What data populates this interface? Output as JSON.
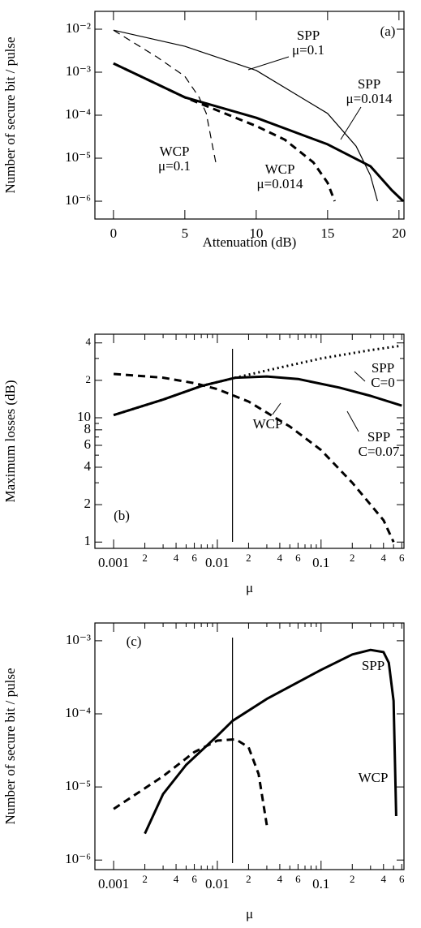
{
  "chart_data": [
    {
      "type": "line",
      "xlabel": "Attenuation (dB)",
      "ylabel": "Number of secure bit / pulse",
      "xscale": "linear",
      "yscale": "log",
      "xlim": [
        -1.3,
        20.35
      ],
      "ylim": [
        3.85e-07,
        0.026
      ],
      "xticks": [
        0,
        5,
        10,
        15,
        20
      ],
      "yticks": [
        {
          "value": 0.01,
          "label": "10⁻²"
        },
        {
          "value": 0.001,
          "label": "10⁻³"
        },
        {
          "value": 0.0001,
          "label": "10⁻⁴"
        },
        {
          "value": 1e-05,
          "label": "10⁻⁵"
        },
        {
          "value": 1e-06,
          "label": "10⁻⁶"
        }
      ],
      "annotations": [
        [
          "(a)"
        ],
        [
          "SPP",
          "μ=0.1"
        ],
        [
          "SPP",
          "μ=0.014"
        ],
        [
          "WCP",
          "μ=0.1"
        ],
        [
          "WCP",
          "μ=0.014"
        ]
      ],
      "series": [
        {
          "color": "#000",
          "width": 1.2,
          "style": "solid",
          "x": [
            0,
            5,
            10,
            15,
            17,
            18,
            18.5
          ],
          "values": [
            0.0095,
            0.004,
            0.0011,
            0.00011,
            1.9e-05,
            4e-06,
            1e-06
          ]
        },
        {
          "color": "#000",
          "width": 3,
          "style": "solid",
          "x": [
            0,
            5,
            10,
            15,
            18,
            19.5,
            20.3
          ],
          "values": [
            0.0016,
            0.00026,
            8.7e-05,
            2.1e-05,
            6.5e-06,
            1.8e-06,
            1e-06
          ]
        },
        {
          "color": "#000",
          "width": 1.2,
          "style": "dashed",
          "x": [
            0,
            3,
            5,
            6,
            6.5,
            7,
            7.2
          ],
          "values": [
            0.0095,
            0.0023,
            0.0008,
            0.00026,
            0.00011,
            1.5e-05,
            7e-06
          ]
        },
        {
          "color": "#000",
          "width": 3,
          "style": "dashed",
          "x": [
            0,
            5,
            10,
            12,
            14,
            15,
            15.5
          ],
          "values": [
            0.0016,
            0.00026,
            5.6e-05,
            2.7e-05,
            8e-06,
            2.7e-06,
            1e-06
          ]
        }
      ]
    },
    {
      "type": "line",
      "xlabel": "μ",
      "ylabel": "Maximum losses (dB)",
      "xscale": "log",
      "yscale": "log",
      "xlim": [
        0.00066,
        0.63
      ],
      "ylim": [
        0.89,
        47
      ],
      "xticks": [
        0.001,
        {
          "value": 0.002,
          "label": "2"
        },
        {
          "value": 0.004,
          "label": "4"
        },
        {
          "value": 0.006,
          "label": "6"
        },
        0.01,
        {
          "value": 0.02,
          "label": "2"
        },
        {
          "value": 0.04,
          "label": "4"
        },
        {
          "value": 0.06,
          "label": "6"
        },
        0.1,
        {
          "value": 0.2,
          "label": "2"
        },
        {
          "value": 0.4,
          "label": "4"
        },
        {
          "value": 0.6,
          "label": "6"
        }
      ],
      "xminor_ticks": [
        0.003,
        0.005,
        0.007,
        0.008,
        0.009,
        0.03,
        0.05,
        0.07,
        0.08,
        0.09,
        0.3,
        0.5
      ],
      "yticks": [
        1,
        2,
        4,
        6,
        8,
        10,
        {
          "value": 20,
          "label": "2"
        },
        {
          "value": 40,
          "label": "4"
        }
      ],
      "yminor_ticks": [
        3,
        5,
        7,
        9,
        30
      ],
      "vline": 0.014,
      "annotations": [
        [
          "(b)"
        ],
        [
          "SPP",
          "C=0"
        ],
        [
          "SPP",
          "C=0.07"
        ],
        [
          "WCP"
        ]
      ],
      "series": [
        {
          "color": "#000",
          "width": 3,
          "style": "dotted",
          "x": [
            0.001,
            0.003,
            0.007,
            0.015,
            0.03,
            0.1,
            0.3,
            0.6
          ],
          "values": [
            10.5,
            14,
            18,
            21,
            24,
            30,
            35,
            38
          ]
        },
        {
          "color": "#000",
          "width": 3,
          "style": "solid",
          "x": [
            0.001,
            0.003,
            0.007,
            0.015,
            0.03,
            0.06,
            0.15,
            0.3,
            0.6
          ],
          "values": [
            10.5,
            14,
            18,
            21,
            21.5,
            20.5,
            17.5,
            15,
            12.5
          ]
        },
        {
          "color": "#000",
          "width": 3,
          "style": "dashed",
          "x": [
            0.001,
            0.003,
            0.006,
            0.01,
            0.02,
            0.05,
            0.1,
            0.2,
            0.4,
            0.5
          ],
          "values": [
            22.5,
            21,
            19,
            17,
            13.5,
            8.5,
            5.5,
            3,
            1.5,
            1
          ]
        }
      ]
    },
    {
      "type": "line",
      "xlabel": "μ",
      "ylabel": "Number of secure bit / pulse",
      "xscale": "log",
      "yscale": "log",
      "xlim": [
        0.00066,
        0.63
      ],
      "ylim": [
        7.4e-07,
        0.00175
      ],
      "xticks": [
        0.001,
        {
          "value": 0.002,
          "label": "2"
        },
        {
          "value": 0.004,
          "label": "4"
        },
        {
          "value": 0.006,
          "label": "6"
        },
        0.01,
        {
          "value": 0.02,
          "label": "2"
        },
        {
          "value": 0.04,
          "label": "4"
        },
        {
          "value": 0.06,
          "label": "6"
        },
        0.1,
        {
          "value": 0.2,
          "label": "2"
        },
        {
          "value": 0.4,
          "label": "4"
        },
        {
          "value": 0.6,
          "label": "6"
        }
      ],
      "xminor_ticks": [
        0.003,
        0.005,
        0.007,
        0.008,
        0.009,
        0.03,
        0.05,
        0.07,
        0.08,
        0.09,
        0.3,
        0.5
      ],
      "yticks": [
        {
          "value": 0.001,
          "label": "10⁻³"
        },
        {
          "value": 0.0001,
          "label": "10⁻⁴"
        },
        {
          "value": 1e-05,
          "label": "10⁻⁵"
        },
        {
          "value": 1e-06,
          "label": "10⁻⁶"
        }
      ],
      "vline": 0.014,
      "annotations": [
        [
          "(c)"
        ],
        [
          "SPP"
        ],
        [
          "WCP"
        ]
      ],
      "series": [
        {
          "color": "#000",
          "width": 3,
          "style": "solid",
          "x": [
            0.002,
            0.003,
            0.005,
            0.01,
            0.014,
            0.03,
            0.1,
            0.2,
            0.3,
            0.4,
            0.45,
            0.5,
            0.53
          ],
          "values": [
            2.3e-06,
            8e-06,
            2e-05,
            5e-05,
            8e-05,
            0.00016,
            0.0004,
            0.00065,
            0.00075,
            0.0007,
            0.0005,
            0.00015,
            4e-06
          ]
        },
        {
          "color": "#000",
          "width": 3,
          "style": "dashed",
          "x": [
            0.001,
            0.003,
            0.006,
            0.01,
            0.015,
            0.02,
            0.025,
            0.03
          ],
          "values": [
            5e-06,
            1.4e-05,
            3e-05,
            4.3e-05,
            4.5e-05,
            3.5e-05,
            1.5e-05,
            3e-06
          ]
        }
      ]
    }
  ]
}
